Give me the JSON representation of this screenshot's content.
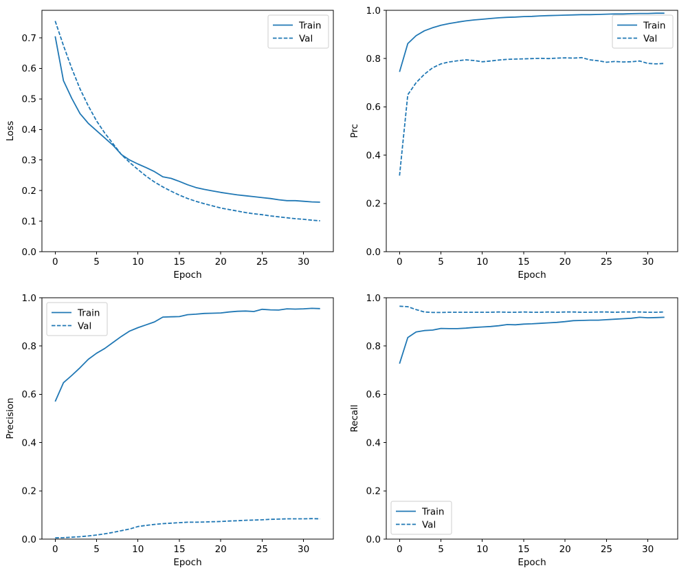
{
  "figure": {
    "background": "#ffffff",
    "line_color": "#1f77b4",
    "axis_color": "#000000",
    "legend_border_color": "#cccccc",
    "legend_background": "#ffffff"
  },
  "chart_data": [
    {
      "type": "line",
      "id": "loss",
      "xlabel": "Epoch",
      "ylabel": "Loss",
      "xlim": [
        -1.6,
        33.6
      ],
      "ylim": [
        0,
        0.79
      ],
      "xticks": [
        0,
        5,
        10,
        15,
        20,
        25,
        30
      ],
      "xtick_labels": [
        "0",
        "5",
        "10",
        "15",
        "20",
        "25",
        "30"
      ],
      "yticks": [
        0.0,
        0.1,
        0.2,
        0.3,
        0.4,
        0.5,
        0.6,
        0.7
      ],
      "ytick_labels": [
        "0.0",
        "0.1",
        "0.2",
        "0.3",
        "0.4",
        "0.5",
        "0.6",
        "0.7"
      ],
      "legend": {
        "position": "upper-right",
        "labels": [
          "Train",
          "Val"
        ]
      },
      "x": [
        0,
        1,
        2,
        3,
        4,
        5,
        6,
        7,
        8,
        9,
        10,
        11,
        12,
        13,
        14,
        15,
        16,
        17,
        18,
        19,
        20,
        21,
        22,
        23,
        24,
        25,
        26,
        27,
        28,
        29,
        30,
        31,
        32
      ],
      "series": [
        {
          "name": "Train",
          "style": "solid",
          "values": [
            0.705,
            0.56,
            0.502,
            0.452,
            0.42,
            0.396,
            0.372,
            0.348,
            0.318,
            0.3,
            0.287,
            0.275,
            0.262,
            0.245,
            0.24,
            0.23,
            0.219,
            0.21,
            0.204,
            0.199,
            0.194,
            0.19,
            0.186,
            0.183,
            0.18,
            0.177,
            0.174,
            0.17,
            0.167,
            0.167,
            0.165,
            0.163,
            0.162
          ]
        },
        {
          "name": "Val",
          "style": "dashed",
          "values": [
            0.755,
            0.675,
            0.6,
            0.533,
            0.477,
            0.428,
            0.388,
            0.353,
            0.318,
            0.292,
            0.269,
            0.247,
            0.228,
            0.212,
            0.198,
            0.185,
            0.174,
            0.165,
            0.157,
            0.15,
            0.143,
            0.138,
            0.133,
            0.128,
            0.124,
            0.121,
            0.117,
            0.114,
            0.111,
            0.108,
            0.106,
            0.103,
            0.101
          ]
        }
      ]
    },
    {
      "type": "line",
      "id": "prc",
      "xlabel": "Epoch",
      "ylabel": "Prc",
      "xlim": [
        -1.6,
        33.6
      ],
      "ylim": [
        0,
        1.0
      ],
      "xticks": [
        0,
        5,
        10,
        15,
        20,
        25,
        30
      ],
      "xtick_labels": [
        "0",
        "5",
        "10",
        "15",
        "20",
        "25",
        "30"
      ],
      "yticks": [
        0.0,
        0.2,
        0.4,
        0.6,
        0.8,
        1.0
      ],
      "ytick_labels": [
        "0.0",
        "0.2",
        "0.4",
        "0.6",
        "0.8",
        "1.0"
      ],
      "legend": {
        "position": "upper-right",
        "labels": [
          "Train",
          "Val"
        ]
      },
      "x": [
        0,
        1,
        2,
        3,
        4,
        5,
        6,
        7,
        8,
        9,
        10,
        11,
        12,
        13,
        14,
        15,
        16,
        17,
        18,
        19,
        20,
        21,
        22,
        23,
        24,
        25,
        26,
        27,
        28,
        29,
        30,
        31,
        32
      ],
      "series": [
        {
          "name": "Train",
          "style": "solid",
          "values": [
            0.745,
            0.862,
            0.895,
            0.915,
            0.928,
            0.938,
            0.945,
            0.951,
            0.956,
            0.96,
            0.963,
            0.966,
            0.969,
            0.971,
            0.972,
            0.974,
            0.975,
            0.977,
            0.978,
            0.979,
            0.98,
            0.981,
            0.982,
            0.982,
            0.983,
            0.984,
            0.985,
            0.985,
            0.986,
            0.987,
            0.987,
            0.988,
            0.988
          ]
        },
        {
          "name": "Val",
          "style": "dashed",
          "values": [
            0.315,
            0.65,
            0.7,
            0.735,
            0.762,
            0.778,
            0.786,
            0.791,
            0.795,
            0.792,
            0.787,
            0.79,
            0.794,
            0.797,
            0.798,
            0.799,
            0.8,
            0.801,
            0.8,
            0.802,
            0.803,
            0.802,
            0.804,
            0.795,
            0.791,
            0.785,
            0.788,
            0.786,
            0.787,
            0.79,
            0.78,
            0.778,
            0.78
          ]
        }
      ]
    },
    {
      "type": "line",
      "id": "precision",
      "xlabel": "Epoch",
      "ylabel": "Precision",
      "xlim": [
        -1.6,
        33.6
      ],
      "ylim": [
        0,
        1.0
      ],
      "xticks": [
        0,
        5,
        10,
        15,
        20,
        25,
        30
      ],
      "xtick_labels": [
        "0",
        "5",
        "10",
        "15",
        "20",
        "25",
        "30"
      ],
      "yticks": [
        0.0,
        0.2,
        0.4,
        0.6,
        0.8,
        1.0
      ],
      "ytick_labels": [
        "0.0",
        "0.2",
        "0.4",
        "0.6",
        "0.8",
        "1.0"
      ],
      "legend": {
        "position": "upper-left",
        "labels": [
          "Train",
          "Val"
        ]
      },
      "x": [
        0,
        1,
        2,
        3,
        4,
        5,
        6,
        7,
        8,
        9,
        10,
        11,
        12,
        13,
        14,
        15,
        16,
        17,
        18,
        19,
        20,
        21,
        22,
        23,
        24,
        25,
        26,
        27,
        28,
        29,
        30,
        31,
        32
      ],
      "series": [
        {
          "name": "Train",
          "style": "solid",
          "values": [
            0.57,
            0.648,
            0.678,
            0.71,
            0.745,
            0.77,
            0.79,
            0.815,
            0.84,
            0.862,
            0.876,
            0.888,
            0.9,
            0.92,
            0.921,
            0.922,
            0.93,
            0.932,
            0.935,
            0.936,
            0.937,
            0.941,
            0.944,
            0.945,
            0.943,
            0.952,
            0.95,
            0.949,
            0.954,
            0.953,
            0.954,
            0.956,
            0.955
          ]
        },
        {
          "name": "Val",
          "style": "dashed",
          "values": [
            0.005,
            0.006,
            0.008,
            0.01,
            0.013,
            0.017,
            0.022,
            0.028,
            0.035,
            0.042,
            0.052,
            0.057,
            0.061,
            0.064,
            0.066,
            0.068,
            0.07,
            0.07,
            0.071,
            0.072,
            0.073,
            0.075,
            0.076,
            0.078,
            0.079,
            0.08,
            0.082,
            0.083,
            0.084,
            0.084,
            0.084,
            0.085,
            0.084
          ]
        }
      ]
    },
    {
      "type": "line",
      "id": "recall",
      "xlabel": "Epoch",
      "ylabel": "Recall",
      "xlim": [
        -1.6,
        33.6
      ],
      "ylim": [
        0,
        1.0
      ],
      "xticks": [
        0,
        5,
        10,
        15,
        20,
        25,
        30
      ],
      "xtick_labels": [
        "0",
        "5",
        "10",
        "15",
        "20",
        "25",
        "30"
      ],
      "yticks": [
        0.0,
        0.2,
        0.4,
        0.6,
        0.8,
        1.0
      ],
      "ytick_labels": [
        "0.0",
        "0.2",
        "0.4",
        "0.6",
        "0.8",
        "1.0"
      ],
      "legend": {
        "position": "lower-left",
        "labels": [
          "Train",
          "Val"
        ]
      },
      "x": [
        0,
        1,
        2,
        3,
        4,
        5,
        6,
        7,
        8,
        9,
        10,
        11,
        12,
        13,
        14,
        15,
        16,
        17,
        18,
        19,
        20,
        21,
        22,
        23,
        24,
        25,
        26,
        27,
        28,
        29,
        30,
        31,
        32
      ],
      "series": [
        {
          "name": "Train",
          "style": "solid",
          "values": [
            0.727,
            0.835,
            0.858,
            0.864,
            0.866,
            0.873,
            0.872,
            0.872,
            0.874,
            0.877,
            0.879,
            0.881,
            0.884,
            0.889,
            0.888,
            0.891,
            0.892,
            0.894,
            0.896,
            0.898,
            0.901,
            0.905,
            0.906,
            0.907,
            0.907,
            0.909,
            0.911,
            0.913,
            0.915,
            0.919,
            0.917,
            0.918,
            0.919
          ]
        },
        {
          "name": "Val",
          "style": "dashed",
          "values": [
            0.965,
            0.963,
            0.951,
            0.941,
            0.939,
            0.939,
            0.94,
            0.94,
            0.94,
            0.94,
            0.94,
            0.94,
            0.941,
            0.94,
            0.94,
            0.941,
            0.94,
            0.94,
            0.941,
            0.94,
            0.941,
            0.941,
            0.94,
            0.94,
            0.941,
            0.941,
            0.94,
            0.941,
            0.941,
            0.941,
            0.94,
            0.94,
            0.941
          ]
        }
      ]
    }
  ]
}
